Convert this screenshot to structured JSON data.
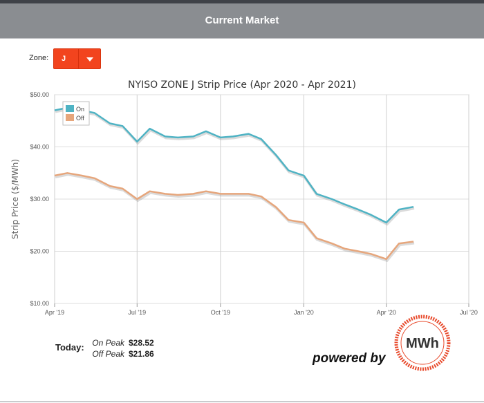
{
  "header": {
    "title": "Current Market"
  },
  "zone": {
    "label": "Zone:",
    "value": "J"
  },
  "chart_data": {
    "type": "line",
    "title": "NYISO ZONE J Strip Price (Apr 2020 - Apr 2021)",
    "ylabel": "Strip Price ($/MWh)",
    "xlabel": "",
    "ylim": [
      10,
      50
    ],
    "y_ticks": [
      10,
      20,
      30,
      40,
      50
    ],
    "y_tick_labels": [
      "$10.00",
      "$20.00",
      "$30.00",
      "$40.00",
      "$50.00"
    ],
    "x_tick_labels": [
      "Apr '19",
      "Jul '19",
      "Oct '19",
      "Jan '20",
      "Apr '20",
      "Jul '20"
    ],
    "legend": {
      "position": "top-left",
      "entries": [
        "On",
        "Off"
      ]
    },
    "grid": true,
    "x": [
      "2019-04-01",
      "2019-04-15",
      "2019-05-01",
      "2019-05-15",
      "2019-06-01",
      "2019-06-15",
      "2019-07-01",
      "2019-07-15",
      "2019-08-01",
      "2019-08-15",
      "2019-09-01",
      "2019-09-15",
      "2019-10-01",
      "2019-10-15",
      "2019-11-01",
      "2019-11-15",
      "2019-12-01",
      "2019-12-15",
      "2020-01-01",
      "2020-01-15",
      "2020-02-01",
      "2020-02-15",
      "2020-03-01",
      "2020-03-15",
      "2020-04-01",
      "2020-04-15",
      "2020-05-01"
    ],
    "series": [
      {
        "name": "On",
        "color": "#4fb3c4",
        "values": [
          47.0,
          47.5,
          47.0,
          46.5,
          44.5,
          44.0,
          41.0,
          43.5,
          42.0,
          41.8,
          42.0,
          43.0,
          41.8,
          42.0,
          42.5,
          41.5,
          38.5,
          35.5,
          34.5,
          31.0,
          30.0,
          29.0,
          28.0,
          27.0,
          25.5,
          28.0,
          28.52
        ]
      },
      {
        "name": "Off",
        "color": "#e6a67c",
        "values": [
          34.5,
          35.0,
          34.5,
          34.0,
          32.5,
          32.0,
          30.0,
          31.5,
          31.0,
          30.8,
          31.0,
          31.5,
          31.0,
          31.0,
          31.0,
          30.5,
          28.5,
          26.0,
          25.5,
          22.5,
          21.5,
          20.5,
          20.0,
          19.5,
          18.5,
          21.5,
          21.86
        ]
      }
    ]
  },
  "today": {
    "label": "Today:",
    "on_peak_label": "On Peak",
    "on_peak_value": "$28.52",
    "off_peak_label": "Off Peak",
    "off_peak_value": "$21.86"
  },
  "branding": {
    "powered_by": "powered by",
    "logo_text": "MWh",
    "logo_color": "#e84a2c"
  }
}
